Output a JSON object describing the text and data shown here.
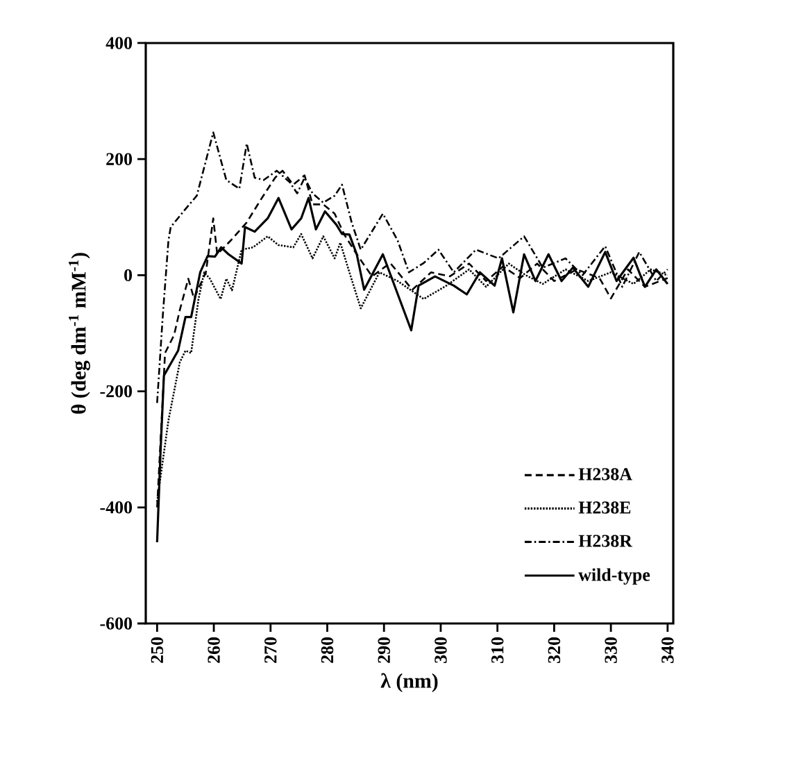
{
  "chart_data": {
    "type": "line",
    "xlabel": "λ (nm)",
    "ylabel": "θ (deg dm$^{-1}$ mM$^{-1}$)",
    "xlim": [
      248,
      341
    ],
    "ylim": [
      -600,
      400
    ],
    "xticks": [
      250,
      260,
      270,
      280,
      290,
      300,
      310,
      320,
      330,
      340
    ],
    "yticks": [
      -600,
      -400,
      -200,
      0,
      200,
      400
    ],
    "grid": false,
    "legend": "bottom right",
    "series": [
      {
        "name": "H238A",
        "color": "#000000",
        "line_style": "dashed",
        "x": [
          250,
          251.4,
          253,
          254,
          255.5,
          256.5,
          258.6,
          259.9,
          260.6,
          263,
          265.8,
          268.2,
          270.8,
          272.1,
          274,
          276,
          277.4,
          279.3,
          281.3,
          283,
          285.2,
          287.9,
          291.1,
          295,
          298.3,
          301.6,
          305,
          308,
          311,
          314,
          317,
          320,
          324,
          328,
          330,
          333,
          336,
          340
        ],
        "values": [
          -400,
          -134,
          -103,
          -60,
          -6,
          -40,
          5,
          98,
          36,
          60,
          91,
          129,
          168,
          180,
          156,
          172,
          122,
          122,
          106,
          70,
          36,
          -2,
          21,
          -25,
          5,
          -2,
          20,
          -10,
          15,
          -5,
          20,
          -10,
          10,
          -5,
          -40,
          10,
          -20,
          -5
        ]
      },
      {
        "name": "H238E",
        "color": "#000000",
        "line_style": "dotted",
        "x": [
          250,
          252,
          254,
          255,
          256,
          257.3,
          258.3,
          259.3,
          261.2,
          262.2,
          263.2,
          264.9,
          266.9,
          269.5,
          271.4,
          274,
          275.4,
          277.4,
          279.3,
          281.3,
          282.3,
          283.9,
          285.9,
          289.2,
          292.4,
          297,
          301,
          305,
          308,
          312,
          315,
          318,
          322,
          326,
          330,
          334,
          337,
          340
        ],
        "values": [
          -390,
          -250,
          -150,
          -130,
          -134,
          -41,
          5,
          -6,
          -41,
          -6,
          -26,
          44,
          48,
          67,
          52,
          48,
          71,
          29,
          67,
          29,
          56,
          5,
          -57,
          5,
          -10,
          -41,
          -18,
          10,
          -20,
          20,
          0,
          -15,
          10,
          -10,
          5,
          -15,
          10,
          0
        ]
      },
      {
        "name": "H238R",
        "color": "#000000",
        "line_style": "dashdot",
        "x": [
          250,
          251,
          252,
          252.4,
          255,
          257,
          259.9,
          262.2,
          264.5,
          265.8,
          267.2,
          268.8,
          271.1,
          273.4,
          274.7,
          276,
          277.4,
          279.3,
          281.3,
          282.6,
          284.3,
          285.9,
          289.8,
          292.4,
          294.4,
          297,
          299.6,
          302.3,
          306.2,
          310.2,
          314.7,
          318,
          322,
          325,
          329,
          332,
          335,
          338,
          340
        ],
        "values": [
          -220,
          -70,
          60,
          83,
          114,
          137,
          246,
          164,
          149,
          227,
          168,
          164,
          180,
          160,
          141,
          168,
          141,
          125,
          137,
          156,
          91,
          44,
          106,
          60,
          5,
          21,
          44,
          5,
          44,
          29,
          67,
          13,
          29,
          0,
          50,
          -20,
          40,
          -10,
          10
        ]
      },
      {
        "name": "wild-type",
        "color": "#000000",
        "line_style": "solid",
        "x": [
          250,
          250.6,
          251.2,
          253.7,
          255,
          256,
          257.6,
          258.9,
          260.2,
          261.3,
          262.6,
          264.9,
          265.5,
          267.2,
          269.5,
          271.4,
          273.7,
          275.4,
          276.7,
          278,
          279.6,
          281.6,
          282.6,
          283.9,
          285.2,
          286.5,
          289.8,
          294.8,
          296.1,
          299,
          302.3,
          304.6,
          306.9,
          309.5,
          310.8,
          312.8,
          314.7,
          316.7,
          319,
          321.3,
          323.3,
          326,
          329,
          331,
          334,
          336,
          338,
          340
        ],
        "values": [
          -460,
          -305,
          -173,
          -130,
          -72,
          -72,
          5,
          33,
          32,
          48,
          36,
          20,
          83,
          75,
          98,
          133,
          79,
          98,
          133,
          79,
          110,
          87,
          71,
          70,
          36,
          -25,
          36,
          -95,
          -18,
          -2,
          -18,
          -33,
          5,
          -18,
          29,
          -64,
          36,
          -10,
          36,
          -10,
          13,
          -20,
          40,
          -10,
          30,
          -20,
          10,
          -15
        ]
      }
    ]
  }
}
